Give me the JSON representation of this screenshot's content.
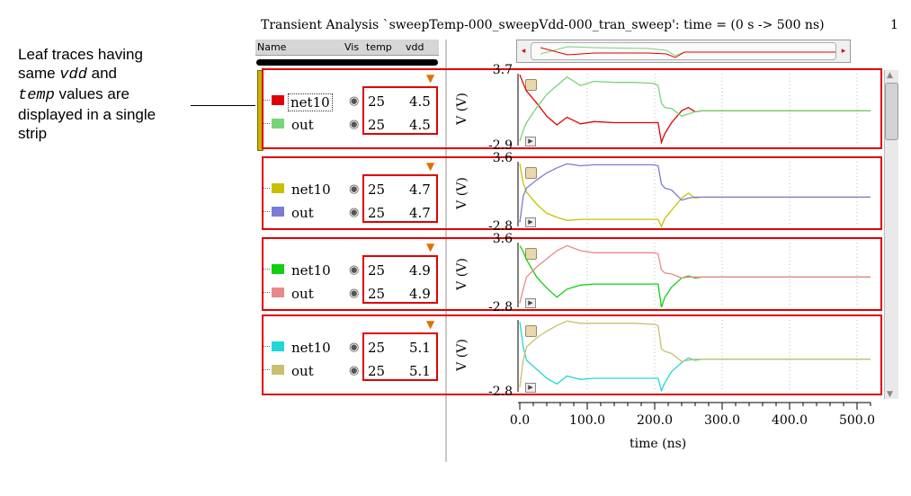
{
  "annotation": {
    "line1": "Leaf traces having",
    "line2_pre": "same ",
    "line2_var": "vdd",
    "line2_post": " and",
    "line3_var": "temp",
    "line3_post": " values are",
    "line4": "displayed in a single",
    "line5": "strip"
  },
  "window": {
    "title": "Transient Analysis `sweepTemp-000_sweepVdd-000_tran_sweep': time = (0 s -> 500 ns)",
    "page_number": "1"
  },
  "columns": {
    "name": "Name",
    "vis": "Vis",
    "temp": "temp",
    "vdd": "vdd"
  },
  "icons": {
    "visibility": "eye-icon",
    "filter": "funnel-icon",
    "lock": "lock-icon"
  },
  "strips": [
    {
      "traces": [
        {
          "name": "net10",
          "color": "#e00000",
          "temp": "25",
          "vdd": "4.5"
        },
        {
          "name": "out",
          "color": "#7ad37a",
          "temp": "25",
          "vdd": "4.5"
        }
      ],
      "ymax_label": "3.7",
      "ymin_label": "-2.9",
      "ylabel": "V (V)"
    },
    {
      "traces": [
        {
          "name": "net10",
          "color": "#c8c000",
          "temp": "25",
          "vdd": "4.7"
        },
        {
          "name": "out",
          "color": "#7b7bd6",
          "temp": "25",
          "vdd": "4.7"
        }
      ],
      "ymax_label": "3.6",
      "ymin_label": "-2.8",
      "ylabel": "V (V)"
    },
    {
      "traces": [
        {
          "name": "net10",
          "color": "#10d010",
          "temp": "25",
          "vdd": "4.9"
        },
        {
          "name": "out",
          "color": "#e88a8a",
          "temp": "25",
          "vdd": "4.9"
        }
      ],
      "ymax_label": "3.6",
      "ymin_label": "-2.8",
      "ylabel": "V (V)"
    },
    {
      "traces": [
        {
          "name": "net10",
          "color": "#20d8d8",
          "temp": "25",
          "vdd": "5.1"
        },
        {
          "name": "out",
          "color": "#c8c070",
          "temp": "25",
          "vdd": "5.1"
        }
      ],
      "ymax_label": "",
      "ymin_label": "-2.8",
      "ylabel": "V (V)"
    }
  ],
  "chart_data": {
    "type": "line",
    "xlabel": "time (ns)",
    "x_ticks": [
      "0.0",
      "100.0",
      "200.0",
      "300.0",
      "400.0",
      "500.0"
    ],
    "xlim": [
      0,
      520
    ],
    "grid": true,
    "x": [
      0,
      5,
      10,
      25,
      40,
      55,
      70,
      90,
      110,
      140,
      170,
      200,
      205,
      210,
      215,
      225,
      240,
      250,
      260,
      270,
      280,
      300,
      350,
      400,
      450,
      500,
      520
    ],
    "strips": [
      {
        "ylim": [
          -2.9,
          3.7
        ],
        "series": [
          {
            "name": "net10",
            "color": "#e00000",
            "values": [
              3.6,
              2.8,
              2.1,
              1.0,
              -0.2,
              -1.0,
              -0.3,
              -0.9,
              -0.7,
              -0.8,
              -0.8,
              -0.8,
              -0.8,
              -2.6,
              -1.8,
              -0.8,
              0.3,
              0.6,
              0.2,
              0.3,
              0.3,
              0.3,
              0.3,
              0.3,
              0.3,
              0.3,
              0.3
            ]
          },
          {
            "name": "out",
            "color": "#7ad37a",
            "values": [
              -2.5,
              -1.5,
              -0.8,
              0.6,
              1.8,
              2.6,
              3.4,
              2.6,
              3.0,
              2.9,
              2.9,
              2.8,
              2.6,
              1.0,
              0.6,
              0.5,
              -0.2,
              0.0,
              0.2,
              0.3,
              0.3,
              0.3,
              0.3,
              0.3,
              0.3,
              0.3,
              0.3
            ]
          }
        ]
      },
      {
        "ylim": [
          -2.8,
          3.6
        ],
        "series": [
          {
            "name": "net10",
            "color": "#c8c000",
            "values": [
              3.4,
              1.5,
              0.6,
              -0.6,
              -1.5,
              -1.9,
              -2.2,
              -2.1,
              -2.1,
              -2.1,
              -2.1,
              -2.1,
              -2.1,
              -2.8,
              -2.0,
              -1.2,
              0.0,
              0.5,
              0.0,
              0.1,
              0.1,
              0.1,
              0.1,
              0.1,
              0.1,
              0.1,
              0.1
            ]
          },
          {
            "name": "out",
            "color": "#7b7bd6",
            "values": [
              -2.4,
              0.2,
              1.0,
              1.8,
              2.5,
              3.0,
              3.4,
              3.2,
              3.3,
              3.3,
              3.3,
              3.3,
              3.2,
              1.4,
              1.0,
              0.8,
              -0.2,
              0.0,
              0.1,
              0.1,
              0.1,
              0.1,
              0.1,
              0.1,
              0.1,
              0.1,
              0.1
            ]
          }
        ]
      },
      {
        "ylim": [
          -2.8,
          3.6
        ],
        "series": [
          {
            "name": "net10",
            "color": "#10d010",
            "values": [
              3.3,
              2.7,
              1.9,
              0.2,
              -0.9,
              -1.8,
              -1.0,
              -0.6,
              -0.5,
              -0.5,
              -0.5,
              -0.5,
              -0.5,
              -2.8,
              -1.8,
              -0.8,
              0.1,
              0.3,
              0.1,
              0.2,
              0.2,
              0.2,
              0.2,
              0.2,
              0.2,
              0.2,
              0.2
            ]
          },
          {
            "name": "out",
            "color": "#e88a8a",
            "values": [
              -2.4,
              -1.0,
              0.2,
              1.2,
              2.0,
              2.8,
              3.3,
              2.8,
              2.6,
              2.6,
              2.6,
              2.6,
              2.5,
              0.9,
              0.6,
              0.5,
              0.1,
              0.2,
              0.2,
              0.2,
              0.2,
              0.2,
              0.2,
              0.2,
              0.2,
              0.2,
              0.2
            ]
          }
        ]
      },
      {
        "ylim": [
          -2.8,
          3.6
        ],
        "series": [
          {
            "name": "net10",
            "color": "#20d8d8",
            "values": [
              3.4,
              1.2,
              0.0,
              -0.8,
              -1.6,
              -2.1,
              -1.4,
              -1.7,
              -1.6,
              -1.6,
              -1.6,
              -1.6,
              -1.6,
              -2.7,
              -2.0,
              -1.0,
              -0.2,
              0.2,
              0.0,
              0.1,
              0.1,
              0.1,
              0.1,
              0.1,
              0.1,
              0.1,
              0.1
            ]
          },
          {
            "name": "out",
            "color": "#c8c070",
            "values": [
              -2.4,
              0.0,
              1.2,
              2.0,
              2.6,
              3.1,
              3.5,
              3.3,
              3.3,
              3.3,
              3.3,
              3.2,
              3.1,
              1.0,
              0.8,
              0.6,
              -0.1,
              0.0,
              0.1,
              0.1,
              0.1,
              0.1,
              0.1,
              0.1,
              0.1,
              0.1,
              0.1
            ]
          }
        ]
      }
    ]
  }
}
